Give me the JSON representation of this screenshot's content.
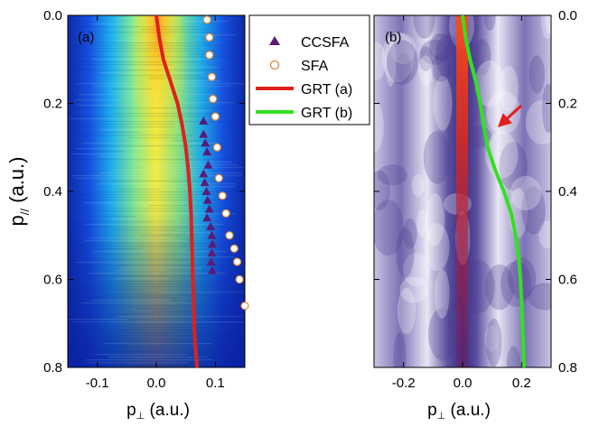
{
  "chart_data": [
    {
      "panel_label": "(a)",
      "type": "heatmap",
      "xlabel_main": "p",
      "xlabel_sub": "⊥",
      "xlabel_units": " (a.u.)",
      "ylabel_main": "p",
      "ylabel_sub": "//",
      "ylabel_units": " (a.u.)",
      "xlim": [
        -0.15,
        0.15
      ],
      "ylim": [
        0.0,
        0.8
      ],
      "y_inverted": true,
      "x_ticks": [
        -0.1,
        0.0,
        0.1
      ],
      "x_tick_labels": [
        "-0.1",
        "0.0",
        "0.1"
      ],
      "y_ticks": [
        0.0,
        0.2,
        0.4,
        0.6,
        0.8
      ],
      "y_tick_labels": [
        "0.0",
        "0.2",
        "0.4",
        "0.6",
        "0.8"
      ],
      "colormap": "jet",
      "series": [
        {
          "name": "CCSFA",
          "type": "scatter",
          "marker": "triangle",
          "color": "#5a1a7a",
          "points": [
            [
              0.08,
              0.24
            ],
            [
              0.08,
              0.27
            ],
            [
              0.083,
              0.29
            ],
            [
              0.086,
              0.31
            ],
            [
              0.088,
              0.34
            ],
            [
              0.08,
              0.36
            ],
            [
              0.082,
              0.38
            ],
            [
              0.085,
              0.4
            ],
            [
              0.087,
              0.42
            ],
            [
              0.09,
              0.44
            ],
            [
              0.086,
              0.46
            ],
            [
              0.092,
              0.48
            ],
            [
              0.094,
              0.5
            ],
            [
              0.095,
              0.52
            ],
            [
              0.094,
              0.54
            ],
            [
              0.093,
              0.56
            ],
            [
              0.095,
              0.58
            ]
          ]
        },
        {
          "name": "SFA",
          "type": "scatter",
          "marker": "circle-open",
          "color": "#e08a3a",
          "points": [
            [
              0.086,
              0.01
            ],
            [
              0.09,
              0.05
            ],
            [
              0.09,
              0.09
            ],
            [
              0.094,
              0.14
            ],
            [
              0.096,
              0.19
            ],
            [
              0.1,
              0.23
            ],
            [
              0.103,
              0.3
            ],
            [
              0.106,
              0.37
            ],
            [
              0.112,
              0.41
            ],
            [
              0.118,
              0.45
            ],
            [
              0.124,
              0.5
            ],
            [
              0.132,
              0.53
            ],
            [
              0.137,
              0.56
            ],
            [
              0.141,
              0.6
            ],
            [
              0.15,
              0.66
            ]
          ]
        },
        {
          "name": "GRT (a)",
          "type": "line",
          "color": "#e0201c",
          "points": [
            [
              0.0,
              0.0
            ],
            [
              0.005,
              0.05
            ],
            [
              0.012,
              0.1
            ],
            [
              0.024,
              0.15
            ],
            [
              0.036,
              0.2
            ],
            [
              0.044,
              0.25
            ],
            [
              0.05,
              0.3
            ],
            [
              0.054,
              0.35
            ],
            [
              0.057,
              0.4
            ],
            [
              0.059,
              0.45
            ],
            [
              0.06,
              0.5
            ],
            [
              0.061,
              0.55
            ],
            [
              0.062,
              0.6
            ],
            [
              0.063,
              0.65
            ],
            [
              0.064,
              0.7
            ],
            [
              0.066,
              0.75
            ],
            [
              0.069,
              0.8
            ]
          ]
        }
      ]
    },
    {
      "panel_label": "(b)",
      "type": "heatmap",
      "xlabel_main": "p",
      "xlabel_sub": "⊥",
      "xlabel_units": " (a.u.)",
      "xlim": [
        -0.3,
        0.3
      ],
      "ylim": [
        0.0,
        0.8
      ],
      "y_inverted": true,
      "x_ticks": [
        -0.2,
        0.0,
        0.2
      ],
      "x_tick_labels": [
        "-0.2",
        "0.0",
        "0.2"
      ],
      "y_ticks": [
        0.0,
        0.2,
        0.4,
        0.6,
        0.8
      ],
      "y_tick_labels": [
        "0.0",
        "0.2",
        "0.4",
        "0.6",
        "0.8"
      ],
      "colormap": "purple-white-red",
      "series": [
        {
          "name": "GRT (b)",
          "type": "line",
          "color": "#33e021",
          "points": [
            [
              0.0,
              0.0
            ],
            [
              0.01,
              0.05
            ],
            [
              0.025,
              0.1
            ],
            [
              0.045,
              0.15
            ],
            [
              0.06,
              0.2
            ],
            [
              0.072,
              0.25
            ],
            [
              0.085,
              0.3
            ],
            [
              0.11,
              0.35
            ],
            [
              0.14,
              0.4
            ],
            [
              0.165,
              0.45
            ],
            [
              0.18,
              0.5
            ],
            [
              0.19,
              0.55
            ],
            [
              0.196,
              0.6
            ],
            [
              0.2,
              0.65
            ],
            [
              0.203,
              0.7
            ],
            [
              0.206,
              0.75
            ],
            [
              0.208,
              0.8
            ]
          ]
        }
      ]
    }
  ],
  "legend": {
    "items": [
      {
        "label": "CCSFA",
        "symbol": "triangle",
        "color": "#5a1a7a"
      },
      {
        "label": "SFA",
        "symbol": "circle-open",
        "color": "#e08a3a"
      },
      {
        "label": "GRT (a)",
        "symbol": "line",
        "color": "#e0201c"
      },
      {
        "label": "GRT (b)",
        "symbol": "line",
        "color": "#33e021"
      }
    ]
  }
}
